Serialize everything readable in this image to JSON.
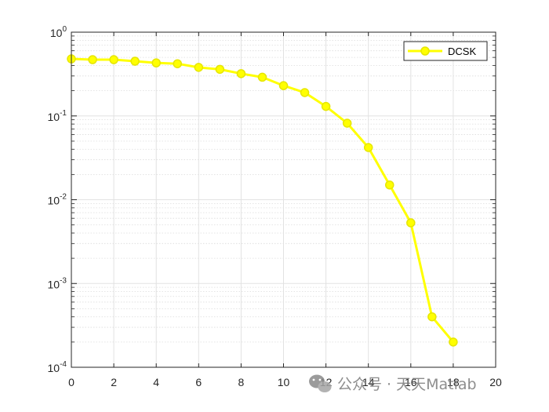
{
  "chart_data": {
    "type": "line",
    "xlim": [
      0,
      20
    ],
    "ylim": [
      0.0001,
      1
    ],
    "yscale": "log",
    "grid": true,
    "minor_grid": true,
    "x_ticks": [
      0,
      2,
      4,
      6,
      8,
      10,
      12,
      14,
      16,
      18,
      20
    ],
    "y_ticks": [
      {
        "base": "10",
        "exp": "0",
        "value": 1
      },
      {
        "base": "10",
        "exp": "-1",
        "value": 0.1
      },
      {
        "base": "10",
        "exp": "-2",
        "value": 0.01
      },
      {
        "base": "10",
        "exp": "-3",
        "value": 0.001
      },
      {
        "base": "10",
        "exp": "-4",
        "value": 0.0001
      }
    ],
    "legend_position": "top-right",
    "series": [
      {
        "name": "DCSK",
        "color": "#ffff00",
        "marker": "circle",
        "x": [
          0,
          1,
          2,
          3,
          4,
          5,
          6,
          7,
          8,
          9,
          10,
          11,
          12,
          13,
          14,
          15,
          16,
          17,
          18
        ],
        "y": [
          0.48,
          0.47,
          0.47,
          0.45,
          0.43,
          0.42,
          0.38,
          0.36,
          0.32,
          0.29,
          0.23,
          0.19,
          0.13,
          0.082,
          0.042,
          0.015,
          0.0053,
          0.0004,
          0.0002
        ]
      }
    ]
  },
  "watermark": {
    "text": "公众号 · 天天Matlab",
    "icon": "wechat-icon"
  }
}
